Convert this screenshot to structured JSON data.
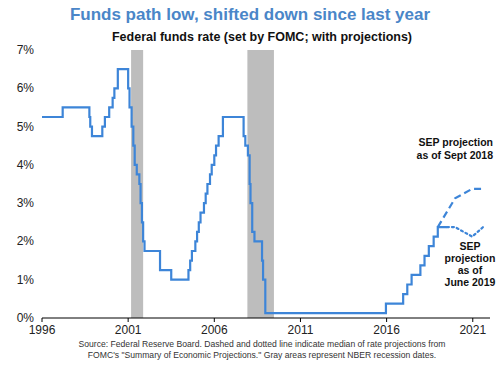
{
  "chart_data": {
    "type": "line",
    "title": "Funds path low, shifted down since last year",
    "subtitle": "Federal funds rate (set by FOMC; with projections)",
    "note": [
      "Source: Federal Reserve Board. Dashed and dotted line indicate median of rate projections from",
      "FOMC's \"Summary of Economic Projections.\" Gray areas represent NBER recession dates."
    ],
    "xlim": [
      1996,
      2022
    ],
    "xticks": [
      1996,
      2001,
      2006,
      2011,
      2016,
      2021
    ],
    "ylim": [
      0,
      7
    ],
    "yticks": [
      {
        "value": 0,
        "label": "0%"
      },
      {
        "value": 1,
        "label": "1%"
      },
      {
        "value": 2,
        "label": "2%"
      },
      {
        "value": 3,
        "label": "3%"
      },
      {
        "value": 4,
        "label": "4%"
      },
      {
        "value": 5,
        "label": "5%"
      },
      {
        "value": 6,
        "label": "6%"
      },
      {
        "value": 7,
        "label": "7%"
      }
    ],
    "grid": false,
    "recessions": [
      [
        2001.17,
        2001.87
      ],
      [
        2007.92,
        2009.46
      ]
    ],
    "series": [
      {
        "type": "step",
        "color": "#3d85d8",
        "line_style": "solid",
        "x": [
          1996.0,
          1997.2,
          1998.75,
          1998.8,
          1998.9,
          1999.5,
          1999.65,
          1999.9,
          2000.1,
          2000.2,
          2000.4,
          2001.0,
          2001.08,
          2001.2,
          2001.3,
          2001.38,
          2001.5,
          2001.65,
          2001.72,
          2001.8,
          2001.87,
          2001.95,
          2002.85,
          2003.5,
          2004.5,
          2004.6,
          2004.7,
          2004.9,
          2005.0,
          2005.1,
          2005.2,
          2005.4,
          2005.5,
          2005.6,
          2005.75,
          2005.85,
          2006.0,
          2006.1,
          2006.25,
          2006.5,
          2007.7,
          2007.8,
          2007.95,
          2008.05,
          2008.1,
          2008.2,
          2008.33,
          2008.77,
          2008.83,
          2008.96,
          2015.96,
          2016.96,
          2017.2,
          2017.45,
          2017.96,
          2018.2,
          2018.45,
          2018.73,
          2018.97,
          2019.5
        ],
        "values": [
          5.25,
          5.5,
          5.25,
          5.0,
          4.75,
          5.0,
          5.25,
          5.5,
          5.75,
          6.0,
          6.5,
          6.0,
          5.5,
          5.0,
          4.5,
          4.0,
          3.75,
          3.5,
          3.0,
          2.5,
          2.0,
          1.75,
          1.25,
          1.0,
          1.25,
          1.5,
          1.75,
          2.0,
          2.25,
          2.5,
          2.75,
          3.0,
          3.25,
          3.5,
          3.75,
          4.0,
          4.25,
          4.5,
          4.75,
          5.25,
          4.75,
          4.5,
          4.25,
          3.5,
          3.0,
          2.25,
          2.0,
          1.5,
          1.0,
          0.125,
          0.375,
          0.625,
          0.875,
          1.125,
          1.375,
          1.625,
          1.875,
          2.125,
          2.375,
          2.375
        ]
      },
      {
        "type": "line",
        "color": "#3d85d8",
        "line_style": "dashed",
        "annotation": [
          "SEP projection",
          "as of Sept 2018"
        ],
        "x": [
          2018.97,
          2019.97,
          2020.97,
          2021.6
        ],
        "values": [
          2.375,
          3.125,
          3.375,
          3.375
        ]
      },
      {
        "type": "line",
        "color": "#3d85d8",
        "line_style": "dotted",
        "annotation": [
          "SEP",
          "projection",
          "as of",
          "June 2019"
        ],
        "x": [
          2019.5,
          2019.97,
          2020.97,
          2021.6
        ],
        "values": [
          2.375,
          2.375,
          2.125,
          2.375
        ]
      }
    ]
  }
}
